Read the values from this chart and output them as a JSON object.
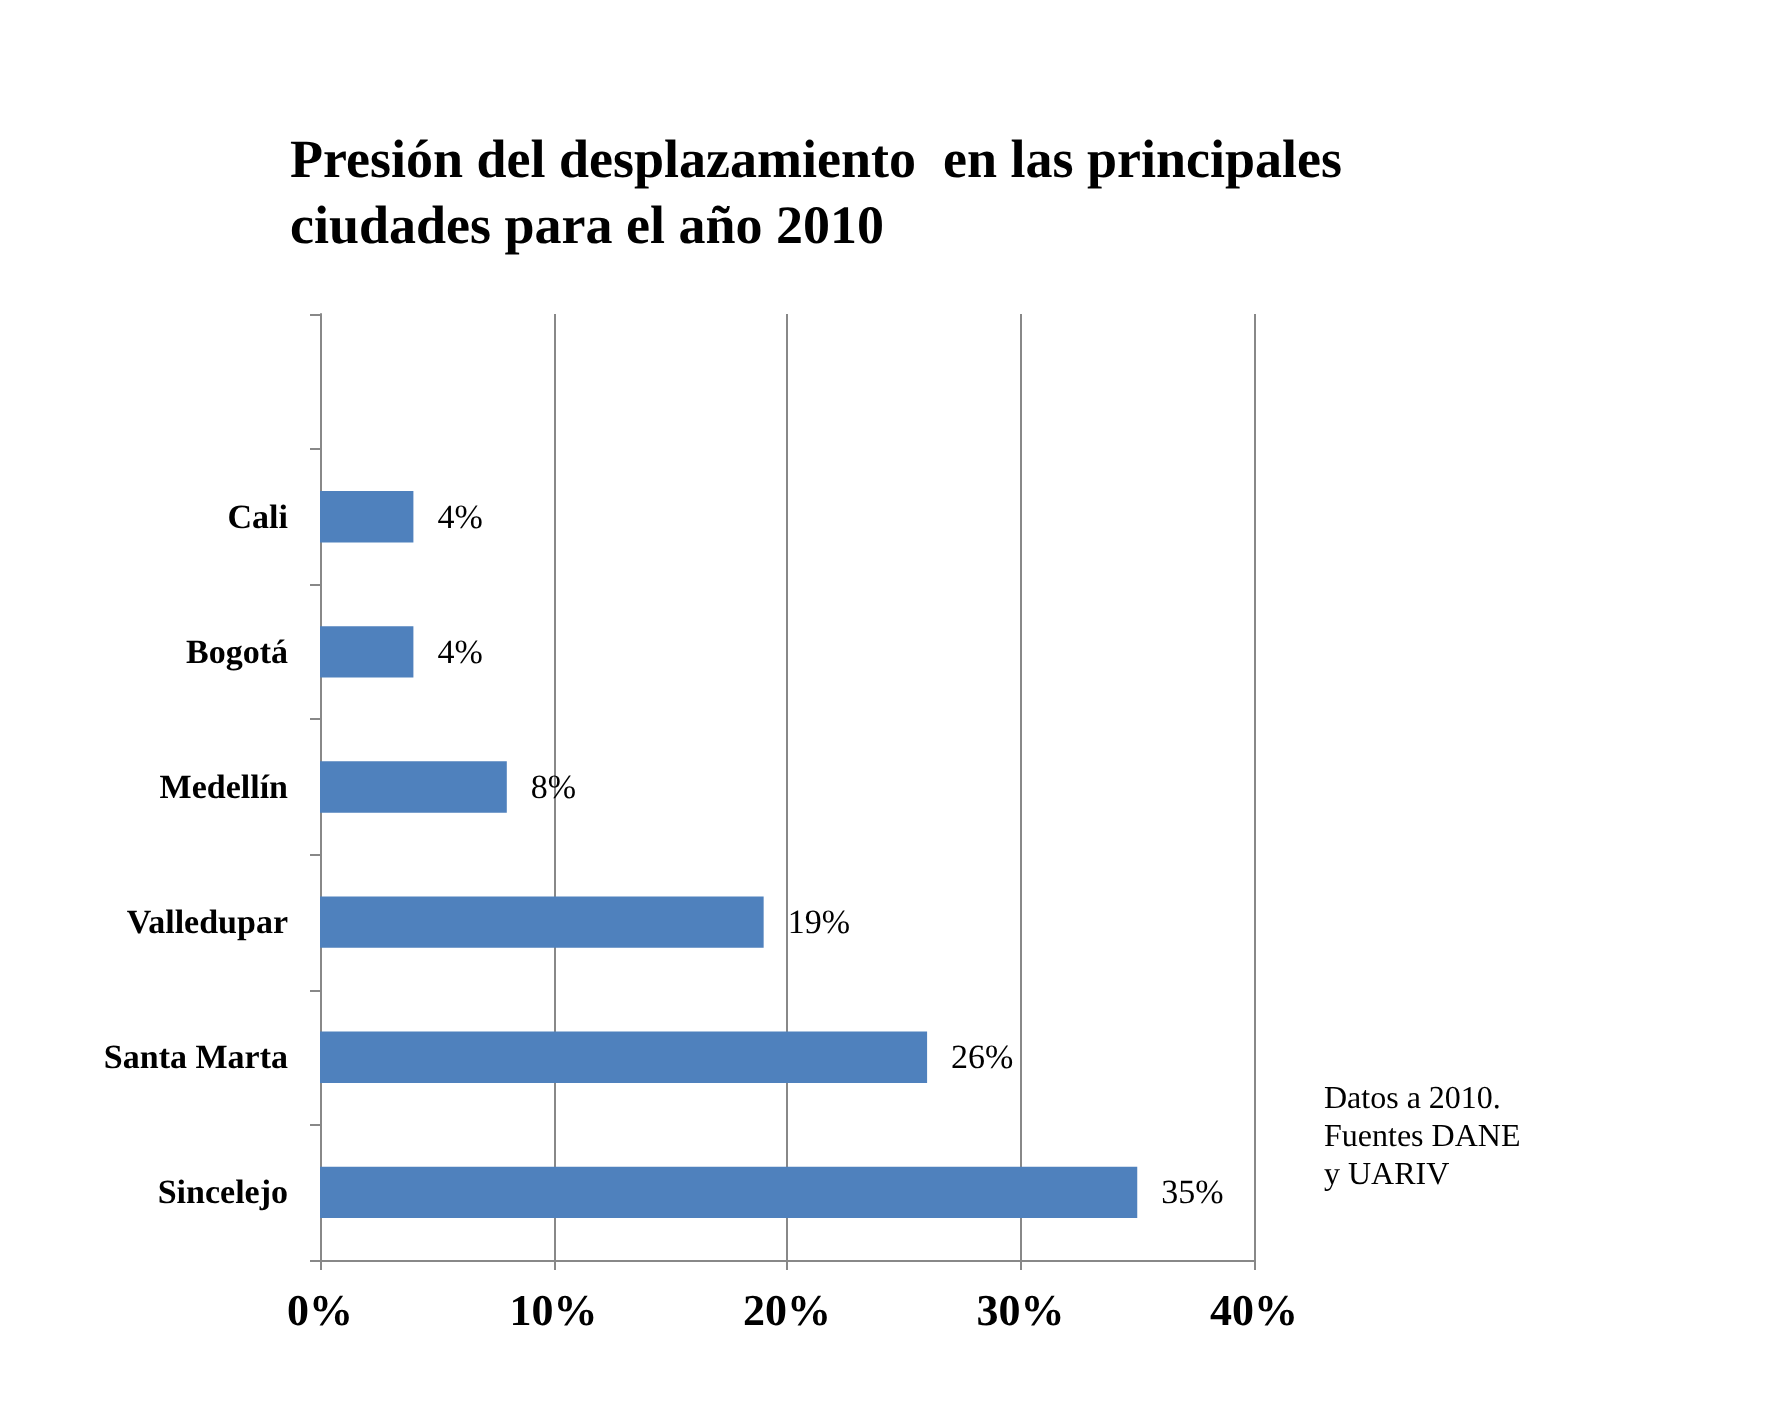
{
  "chart_data": {
    "type": "bar",
    "orientation": "horizontal",
    "title": "Presión del desplazamiento  en las principales ciudades para el año 2010",
    "categories": [
      null,
      "Cali",
      "Bogotá",
      "Medellín",
      "Valledupar",
      "Santa Marta",
      "Sincelejo"
    ],
    "values": [
      null,
      4,
      4,
      8,
      19,
      26,
      35
    ],
    "value_labels": [
      null,
      "4%",
      "4%",
      "8%",
      "19%",
      "26%",
      "35%"
    ],
    "color": "#4f81bd",
    "xlim": [
      0,
      40
    ],
    "xticks": [
      {
        "value": 0,
        "label": "0%"
      },
      {
        "value": 10,
        "label": "10%"
      },
      {
        "value": 20,
        "label": "20%"
      },
      {
        "value": 30,
        "label": "30%"
      },
      {
        "value": 40,
        "label": "40%"
      }
    ],
    "grid": "x",
    "annotations": [
      "Datos a 2010.\nFuentes DANE\ny UARIV"
    ]
  }
}
